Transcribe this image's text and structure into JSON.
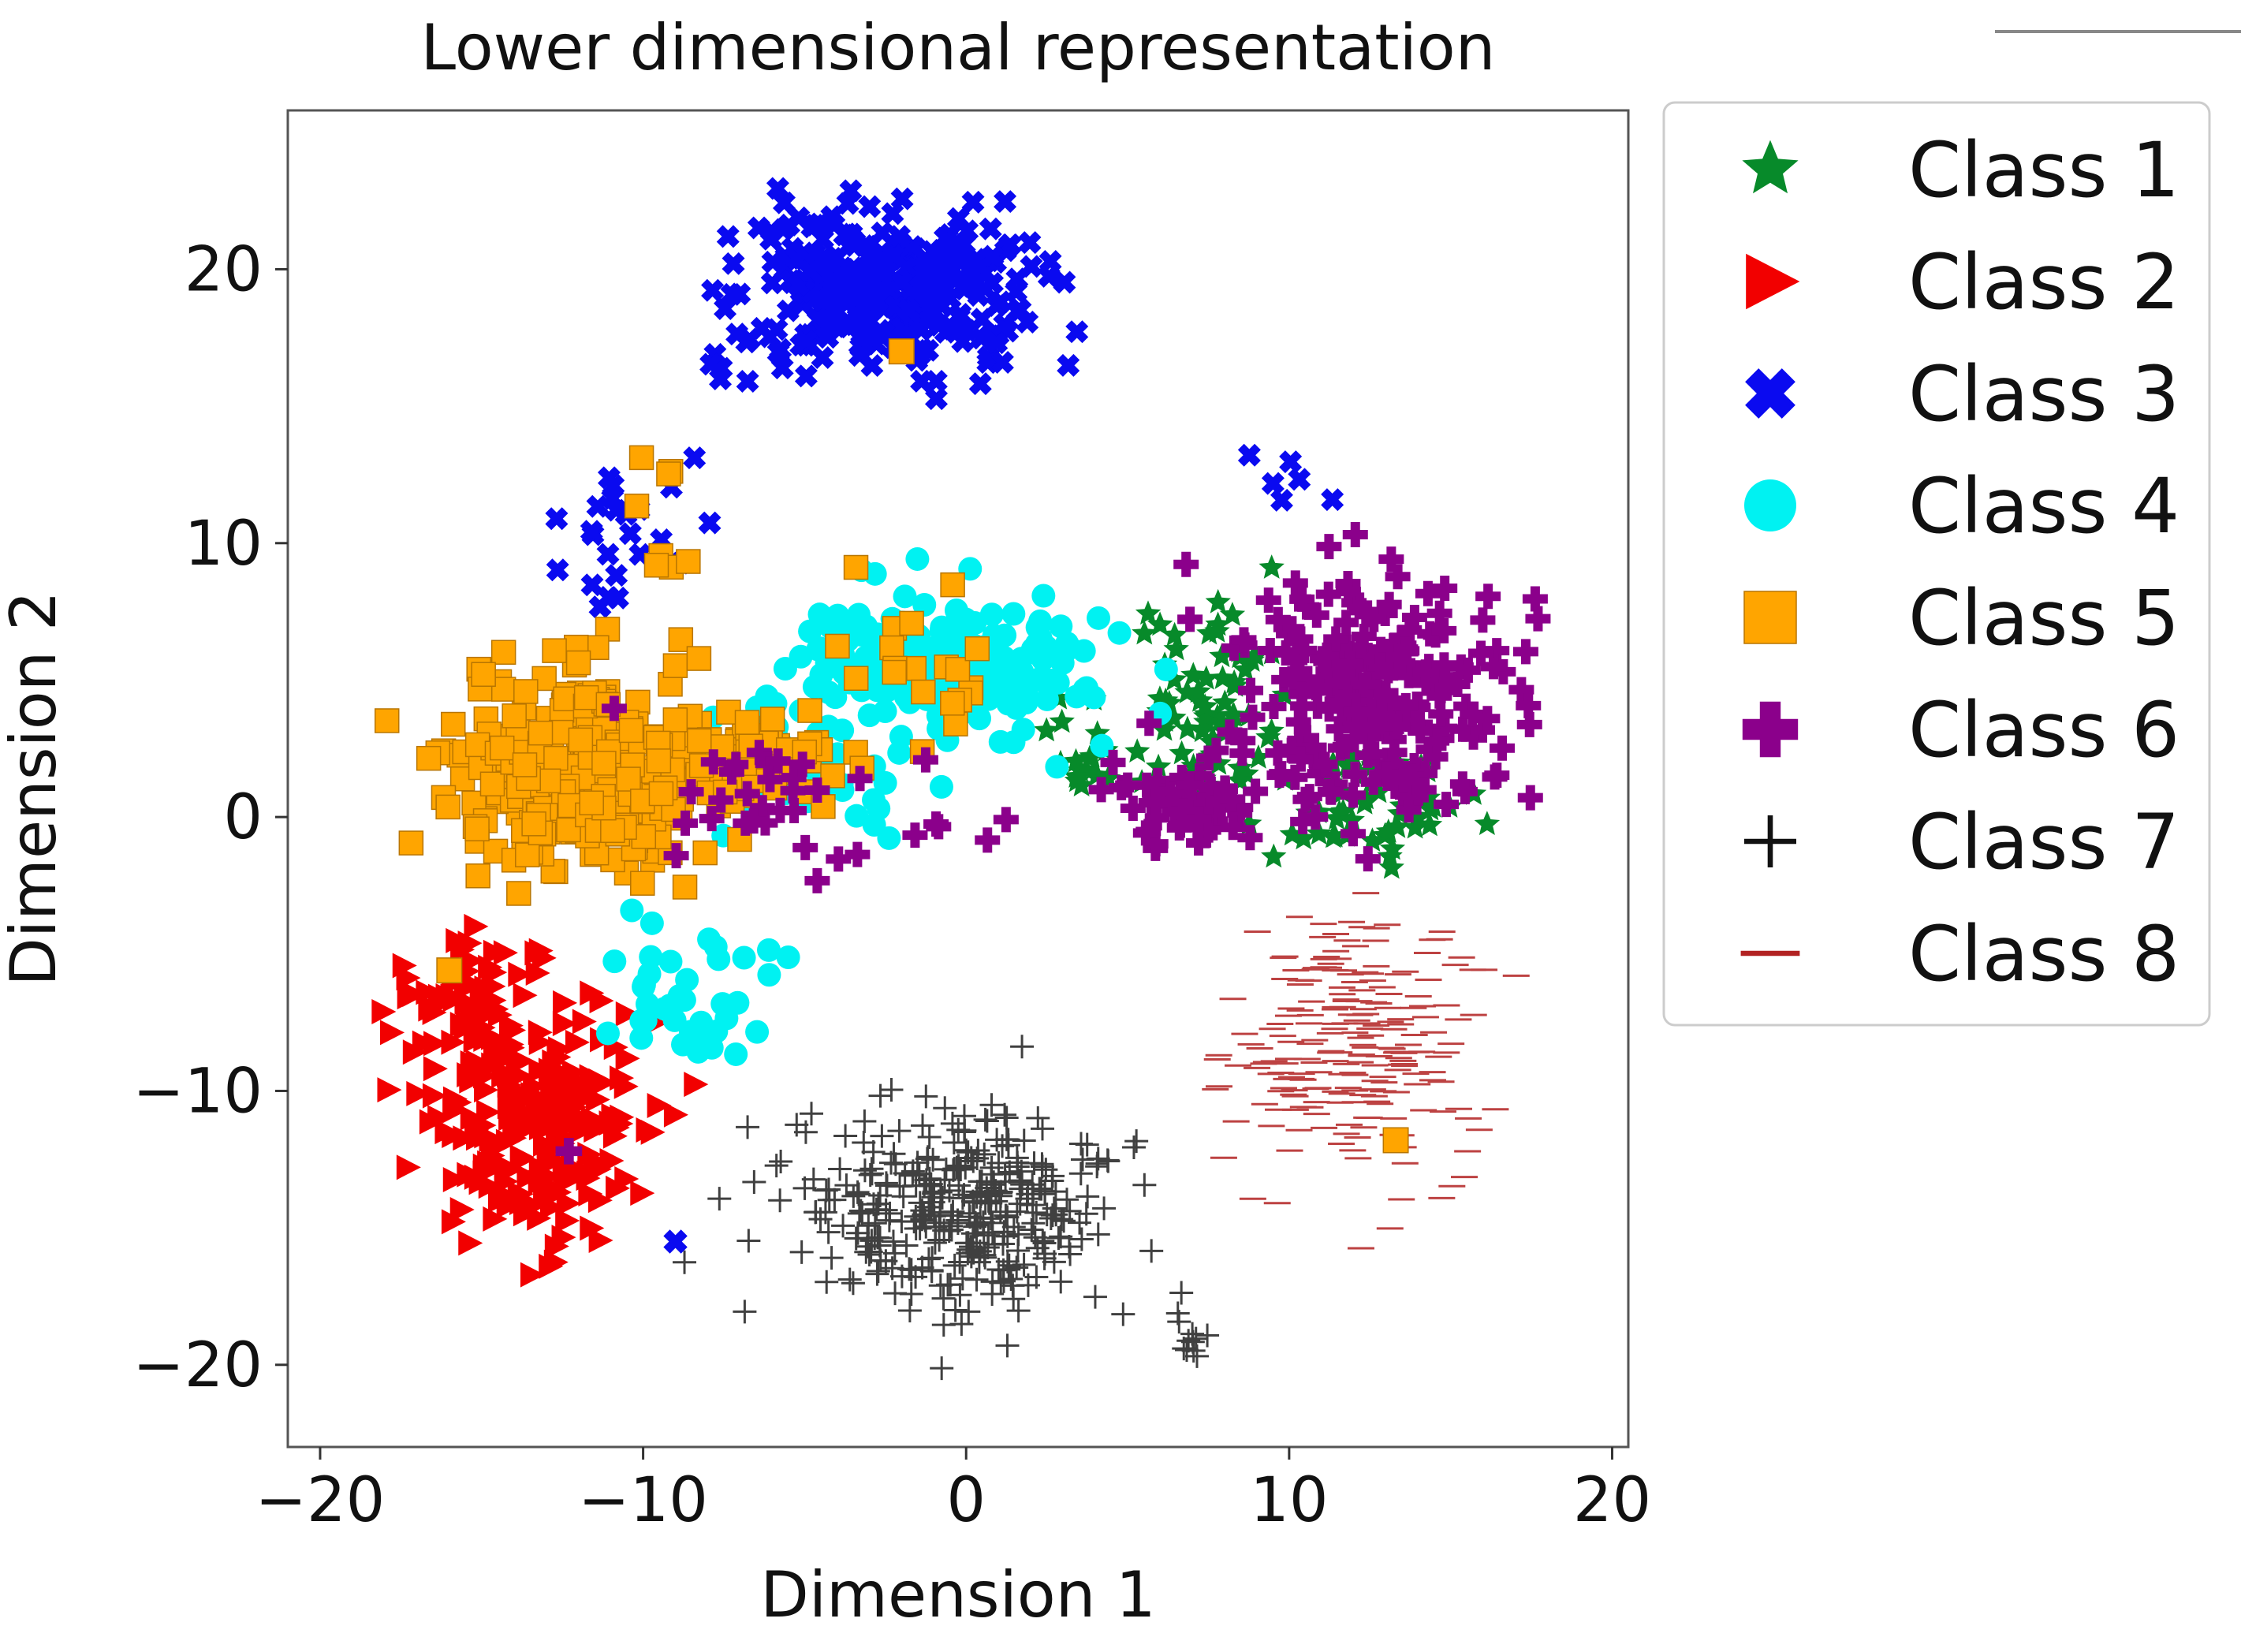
{
  "chart_data": {
    "type": "scatter",
    "title": "Lower dimensional representation",
    "xlabel": "Dimension 1",
    "ylabel": "Dimension 2",
    "xlim": [
      -21,
      20.5
    ],
    "ylim": [
      -23,
      25.8
    ],
    "xticks": [
      -20,
      -10,
      0,
      10,
      20
    ],
    "yticks": [
      -20,
      -10,
      0,
      10,
      20
    ],
    "xtick_labels": [
      "−20",
      "−10",
      "0",
      "10",
      "20"
    ],
    "ytick_labels": [
      "−20",
      "−10",
      "0",
      "10",
      "20"
    ],
    "grid": false,
    "legend_position": "outside-right-top",
    "series": [
      {
        "name": "Class 1",
        "marker": "star",
        "color": "#078a2a",
        "clusters": [
          {
            "cx": 7.5,
            "cy": 4.0,
            "sx": 1.8,
            "sy": 3.0,
            "n": 70
          },
          {
            "cx": 12.5,
            "cy": 0.5,
            "sx": 2.2,
            "sy": 1.3,
            "n": 55
          },
          {
            "cx": 3.5,
            "cy": 2.5,
            "sx": 1.2,
            "sy": 1.5,
            "n": 20
          }
        ]
      },
      {
        "name": "Class 2",
        "marker": "triangle-right",
        "color": "#f20000",
        "clusters": [
          {
            "cx": -13.5,
            "cy": -11.0,
            "sx": 2.5,
            "sy": 3.3,
            "n": 230
          },
          {
            "cx": -15.5,
            "cy": -6.5,
            "sx": 1.5,
            "sy": 1.5,
            "n": 50
          }
        ]
      },
      {
        "name": "Class 3",
        "marker": "x-filled",
        "color": "#0a0af0",
        "clusters": [
          {
            "cx": -2.5,
            "cy": 19.3,
            "sx": 3.4,
            "sy": 2.0,
            "n": 320
          },
          {
            "cx": -11.0,
            "cy": 10.0,
            "sx": 1.5,
            "sy": 2.2,
            "n": 24
          },
          {
            "cx": 10.0,
            "cy": 12.0,
            "sx": 1.0,
            "sy": 1.0,
            "n": 6
          }
        ]
      },
      {
        "name": "Class 4",
        "marker": "circle",
        "color": "#00f2f2",
        "clusters": [
          {
            "cx": -1.0,
            "cy": 5.5,
            "sx": 3.2,
            "sy": 1.8,
            "n": 250
          },
          {
            "cx": -8.5,
            "cy": -6.5,
            "sx": 2.0,
            "sy": 1.8,
            "n": 40
          },
          {
            "cx": -5.0,
            "cy": 1.5,
            "sx": 3.0,
            "sy": 1.5,
            "n": 50
          }
        ]
      },
      {
        "name": "Class 5",
        "marker": "square",
        "color": "#ffa500",
        "clusters": [
          {
            "cx": -12.0,
            "cy": 1.5,
            "sx": 2.7,
            "sy": 2.7,
            "n": 330
          },
          {
            "cx": -6.5,
            "cy": 2.0,
            "sx": 2.5,
            "sy": 1.5,
            "n": 70
          },
          {
            "cx": -1.0,
            "cy": 5.0,
            "sx": 2.2,
            "sy": 1.8,
            "n": 20
          },
          {
            "cx": -9.0,
            "cy": 10.5,
            "sx": 1.2,
            "sy": 1.6,
            "n": 8
          }
        ]
      },
      {
        "name": "Class 6",
        "marker": "plus-filled",
        "color": "#8b008b",
        "clusters": [
          {
            "cx": 12.5,
            "cy": 4.5,
            "sx": 3.0,
            "sy": 3.0,
            "n": 240
          },
          {
            "cx": 7.0,
            "cy": 0.5,
            "sx": 1.6,
            "sy": 1.2,
            "n": 60
          },
          {
            "cx": -5.0,
            "cy": 0.5,
            "sx": 4.0,
            "sy": 2.0,
            "n": 35
          }
        ]
      },
      {
        "name": "Class 7",
        "marker": "plus-thin",
        "color": "#111111",
        "clusters": [
          {
            "cx": 0.0,
            "cy": -14.5,
            "sx": 3.6,
            "sy": 2.6,
            "n": 360
          },
          {
            "cx": 7.0,
            "cy": -19.0,
            "sx": 0.6,
            "sy": 0.4,
            "n": 10
          }
        ]
      },
      {
        "name": "Class 8",
        "marker": "hline",
        "color": "#b22222",
        "clusters": [
          {
            "cx": 12.0,
            "cy": -8.5,
            "sx": 2.6,
            "sy": 3.4,
            "n": 230
          }
        ]
      }
    ],
    "outliers": [
      {
        "series": "Class 5",
        "x": -2.0,
        "y": 17.0
      },
      {
        "series": "Class 5",
        "x": 13.3,
        "y": -11.8
      },
      {
        "series": "Class 5",
        "x": -16.0,
        "y": -5.6
      },
      {
        "series": "Class 3",
        "x": -9.0,
        "y": -15.5
      },
      {
        "series": "Class 6",
        "x": -12.3,
        "y": -12.2
      }
    ]
  }
}
